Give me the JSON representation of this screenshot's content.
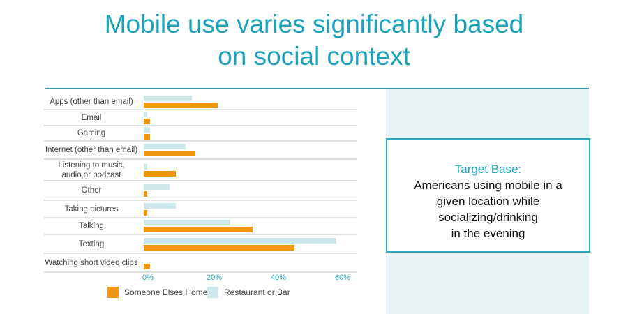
{
  "title": [
    "Mobile use varies significantly based",
    "on social context"
  ],
  "target_box": {
    "heading": "Target Base:",
    "body": "Americans using mobile in a\ngiven location while\nsocializing/drinking\nin the evening"
  },
  "colors": {
    "home": "#f0960f",
    "restaurant": "#cde7ea",
    "accent": "#1ba3bb"
  },
  "chart_data": {
    "type": "bar",
    "orientation": "horizontal",
    "categories": [
      "Apps (other than email)",
      "Email",
      "Gaming",
      "Internet (other than email)",
      "Listening to music, audio,or podcast",
      "Other",
      "Taking pictures",
      "Talking",
      "Texting",
      "Watching short video clips"
    ],
    "series": [
      {
        "name": "Restaurant or Bar",
        "values": [
          15,
          1,
          2,
          13,
          1,
          8,
          10,
          27,
          60,
          0.3
        ]
      },
      {
        "name": "Someone Elses Home",
        "values": [
          23,
          2,
          2,
          16,
          10,
          1,
          1,
          34,
          47,
          2
        ]
      }
    ],
    "xticks": [
      "0%",
      "20%",
      "40%",
      "60%"
    ],
    "xlim": [
      0,
      60
    ],
    "legend": [
      "Someone Elses Home",
      "Restaurant or Bar"
    ],
    "legend_position": "bottom"
  }
}
